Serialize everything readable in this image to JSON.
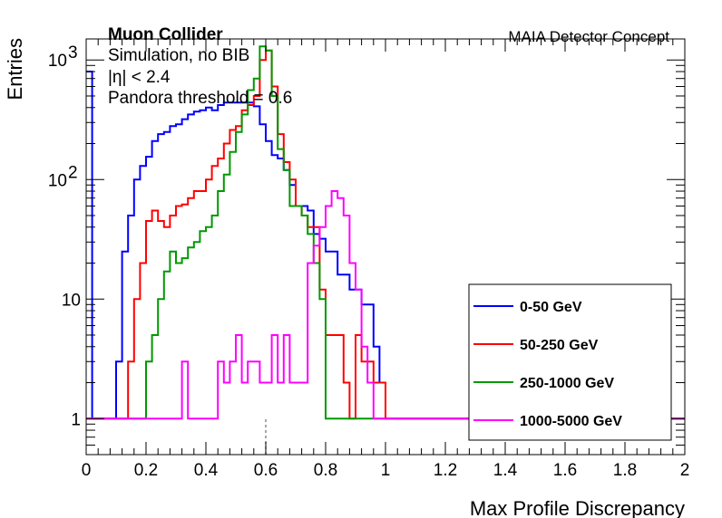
{
  "chart_data": {
    "type": "line",
    "xlabel": "Max Profile Discrepancy",
    "ylabel": "Entries",
    "xlim": [
      0,
      2
    ],
    "ylim": [
      0.5,
      1500
    ],
    "yscale": "log",
    "bin_width": 0.02,
    "x_ticks": [
      "0",
      "0.2",
      "0.4",
      "0.6",
      "0.8",
      "1",
      "1.2",
      "1.4",
      "1.6",
      "1.8",
      "2"
    ],
    "y_ticks": [
      {
        "value": 1,
        "label": "1"
      },
      {
        "value": 10,
        "label": "10"
      },
      {
        "value": 100,
        "label": "10",
        "exp": "2"
      },
      {
        "value": 1000,
        "label": "10",
        "exp": "3"
      }
    ],
    "annotations": {
      "experiment": "Muon Collider",
      "concept": "MAIA Detector Concept",
      "lines": [
        "Simulation, no BIB",
        "|η| < 2.4",
        "Pandora threshold = 0.6"
      ]
    },
    "threshold_x": 0.6,
    "legend_position": "bottom-right",
    "series": [
      {
        "name": "0-50 GeV",
        "color": "#0000ff",
        "bin_start": 0,
        "values": [
          800,
          1,
          1,
          1,
          1,
          3,
          25,
          50,
          100,
          130,
          155,
          210,
          240,
          250,
          280,
          290,
          320,
          350,
          370,
          380,
          400,
          380,
          420,
          440,
          440,
          440,
          440,
          440,
          410,
          290,
          210,
          160,
          150,
          120,
          90,
          60,
          60,
          55,
          35,
          32,
          25,
          25,
          16,
          16,
          12,
          12,
          9,
          9,
          4,
          2,
          1,
          1,
          1,
          1,
          1,
          1,
          1,
          1,
          1,
          1,
          1,
          1,
          1,
          1,
          1,
          1,
          1,
          1,
          1,
          1,
          1,
          1,
          1,
          1,
          1,
          1,
          1,
          1,
          1,
          1,
          1,
          1,
          1,
          1,
          1,
          1,
          1,
          1,
          1,
          1,
          1,
          1,
          1,
          1,
          1,
          1,
          1,
          1,
          1,
          1
        ]
      },
      {
        "name": "50-250 GeV",
        "color": "#ff0000",
        "bin_start": 0,
        "values": [
          1,
          1,
          1,
          1,
          1,
          1,
          1,
          3,
          10,
          20,
          45,
          55,
          45,
          40,
          50,
          60,
          62,
          70,
          80,
          80,
          100,
          130,
          150,
          200,
          260,
          280,
          380,
          420,
          500,
          1000,
          1200,
          600,
          240,
          140,
          100,
          60,
          50,
          40,
          40,
          12,
          5,
          5,
          5,
          2,
          1,
          5,
          3,
          3,
          2,
          2,
          1,
          1,
          1,
          1,
          1,
          1,
          1,
          1,
          1,
          1,
          1,
          1,
          1,
          1,
          1,
          1,
          1,
          1,
          1,
          1,
          1,
          1,
          1,
          1,
          1,
          1,
          1,
          1,
          1,
          1,
          1,
          1,
          1,
          1,
          1,
          1,
          1,
          1,
          1,
          1,
          1,
          1,
          1,
          1,
          1,
          1,
          1,
          1,
          1,
          1
        ]
      },
      {
        "name": "250-1000 GeV",
        "color": "#009900",
        "bin_start": 0,
        "values": [
          1,
          1,
          1,
          1,
          1,
          1,
          1,
          1,
          1,
          1,
          3,
          5,
          10,
          17,
          25,
          20,
          22,
          27,
          30,
          37,
          40,
          50,
          80,
          110,
          170,
          250,
          350,
          560,
          700,
          1300,
          1200,
          500,
          180,
          120,
          60,
          60,
          50,
          35,
          20,
          10,
          1,
          1,
          1,
          1,
          1,
          1,
          1,
          1,
          1,
          1,
          1,
          1,
          1,
          1,
          1,
          1,
          1,
          1,
          1,
          1,
          1,
          1,
          1,
          1,
          1,
          1,
          1,
          1,
          1,
          1,
          1,
          1,
          1,
          1,
          1,
          1,
          1,
          1,
          1,
          1,
          1,
          1,
          1,
          1,
          1,
          1,
          1,
          1,
          1,
          1,
          1,
          1,
          1,
          1,
          1,
          1,
          1,
          1,
          1,
          1
        ]
      },
      {
        "name": "1000-5000 GeV",
        "color": "#ff00ff",
        "bin_start": 0,
        "values": [
          1,
          1,
          1,
          1,
          1,
          1,
          1,
          1,
          1,
          1,
          1,
          1,
          1,
          1,
          1,
          1,
          3,
          1,
          1,
          1,
          1,
          1,
          3,
          2,
          3,
          5,
          2,
          3,
          3,
          2,
          2,
          5,
          2,
          5,
          2,
          2,
          2,
          20,
          28,
          40,
          60,
          80,
          70,
          50,
          20,
          12,
          4,
          2,
          1,
          1,
          1,
          1,
          1,
          1,
          1,
          1,
          1,
          1,
          1,
          1,
          1,
          1,
          1,
          1,
          1,
          1,
          1,
          1,
          1,
          1,
          1,
          1,
          1,
          1,
          1,
          1,
          1,
          1,
          1,
          1,
          1,
          1,
          1,
          1,
          1,
          1,
          1,
          1,
          1,
          1,
          1,
          1,
          1,
          1,
          1,
          1,
          1,
          1,
          1,
          1
        ]
      }
    ]
  }
}
